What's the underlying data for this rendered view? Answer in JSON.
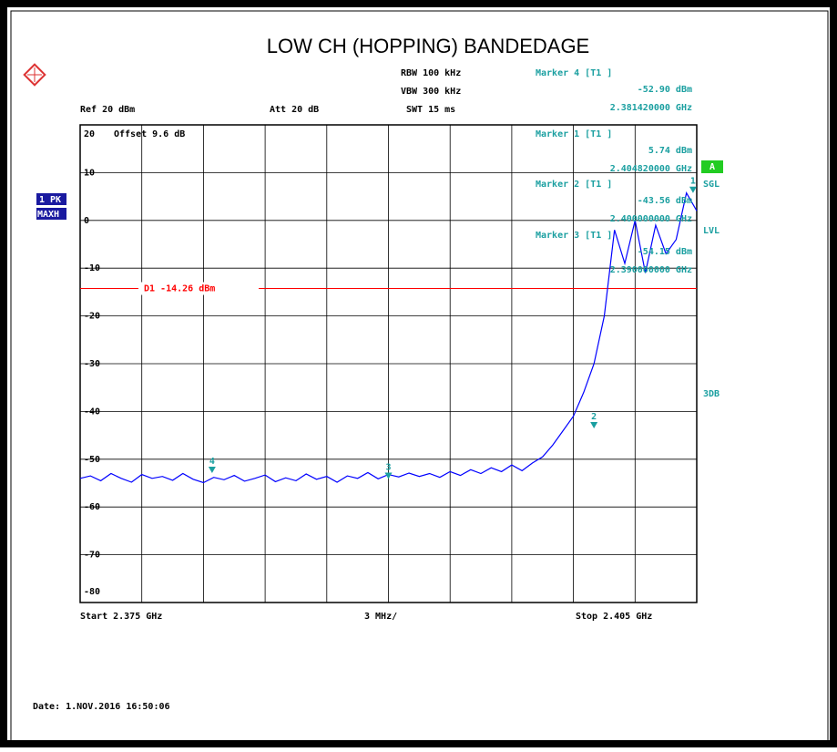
{
  "header": {
    "title": "LOW CH (HOPPING) BANDEDAGE"
  },
  "settings": {
    "rbw": "RBW 100 kHz",
    "vbw": "VBW 300 kHz",
    "swt": "SWT 15 ms",
    "ref": "Ref 20 dBm",
    "att": "Att 20 dB",
    "offset": "Offset 9.6 dB",
    "trace_label": "1 PK",
    "trace_mode": "MAXH",
    "a": "A",
    "sgl": "SGL",
    "lvl": "LVL",
    "db3": "3DB",
    "start": "Start 2.375 GHz",
    "span_div": "3 MHz/",
    "stop": "Stop 2.405 GHz"
  },
  "footer": {
    "date": "Date: 1.NOV.2016 16:50:06"
  },
  "chart_data": {
    "type": "line",
    "xlim": [
      2.375,
      2.405
    ],
    "ylim": [
      -80,
      20
    ],
    "yticks": [
      20,
      10,
      0,
      -10,
      -20,
      -30,
      -40,
      -50,
      -60,
      -70,
      -80
    ],
    "x": [
      2.375,
      2.3755,
      2.376,
      2.3765,
      2.377,
      2.3775,
      2.378,
      2.3785,
      2.379,
      2.3795,
      2.38,
      2.3805,
      2.381,
      2.3815,
      2.382,
      2.3825,
      2.383,
      2.3835,
      2.384,
      2.3845,
      2.385,
      2.3855,
      2.386,
      2.3865,
      2.387,
      2.3875,
      2.388,
      2.3885,
      2.389,
      2.3895,
      2.39,
      2.3905,
      2.391,
      2.3915,
      2.392,
      2.3925,
      2.393,
      2.3935,
      2.394,
      2.3945,
      2.395,
      2.3955,
      2.396,
      2.3965,
      2.397,
      2.3975,
      2.398,
      2.3985,
      2.399,
      2.3995,
      2.4,
      2.4005,
      2.401,
      2.4015,
      2.402,
      2.4025,
      2.403,
      2.4035,
      2.404,
      2.4045,
      2.405
    ],
    "series": [
      {
        "color": "#0000ff",
        "values": [
          -54,
          -53.5,
          -54.5,
          -53,
          -54,
          -54.8,
          -53.2,
          -54,
          -53.6,
          -54.4,
          -53,
          -54.2,
          -54.9,
          -53.8,
          -54.3,
          -53.4,
          -54.6,
          -54,
          -53.3,
          -54.7,
          -53.9,
          -54.5,
          -53.1,
          -54.2,
          -53.6,
          -54.8,
          -53.5,
          -54,
          -52.8,
          -54.1,
          -53.2,
          -53.7,
          -52.9,
          -53.6,
          -53,
          -53.8,
          -52.6,
          -53.4,
          -52.2,
          -53,
          -51.8,
          -52.6,
          -51.2,
          -52.4,
          -50.8,
          -49.5,
          -47,
          -44,
          -41,
          -36,
          -30,
          -20,
          -2,
          -9,
          0,
          -11,
          -1,
          -7,
          -4,
          5.74,
          2
        ]
      }
    ],
    "display_line": {
      "label": "D1 -14.26 dBm",
      "value": -14.26,
      "color": "#ff0000"
    },
    "markers": [
      {
        "id": "4",
        "heading": "Marker 4 [T1 ]",
        "x": 2.38142,
        "x_label": "2.381420000 GHz",
        "y": -52.9,
        "y_label": "-52.90 dBm"
      },
      {
        "id": "1",
        "heading": "Marker 1 [T1 ]",
        "x": 2.40482,
        "x_label": "2.404820000 GHz",
        "y": 5.74,
        "y_label": "5.74 dBm"
      },
      {
        "id": "2",
        "heading": "Marker 2 [T1 ]",
        "x": 2.4,
        "x_label": "2.400000000 GHz",
        "y": -43.56,
        "y_label": "-43.56 dBm"
      },
      {
        "id": "3",
        "heading": "Marker 3 [T1 ]",
        "x": 2.39,
        "x_label": "2.390000000 GHz",
        "y": -54.15,
        "y_label": "-54.15 dBm"
      }
    ]
  }
}
